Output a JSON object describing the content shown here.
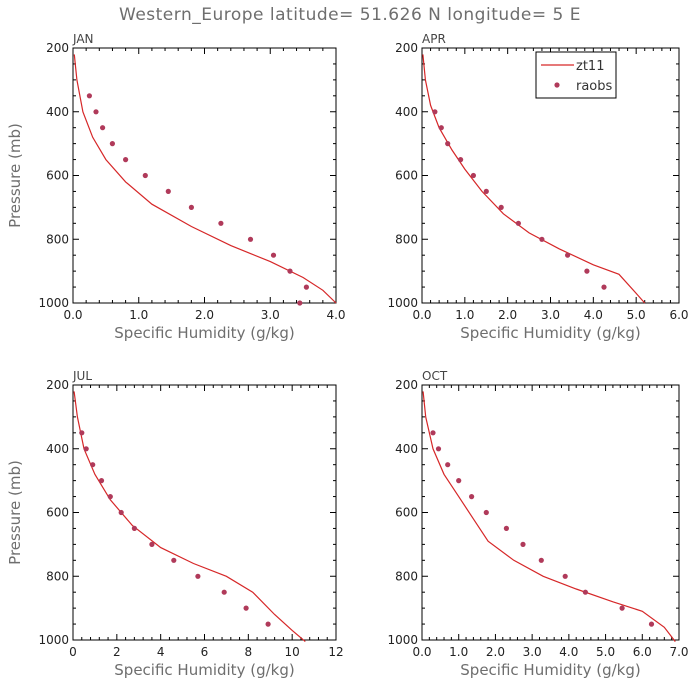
{
  "title": "Western_Europe  latitude= 51.626 N longitude= 5 E",
  "chart_data": [
    {
      "type": "line",
      "panel": "JAN",
      "xlabel": "Specific Humidity (g/kg)",
      "ylabel": "Pressure (mb)",
      "xlim": [
        0,
        4.0
      ],
      "ylim": [
        200,
        1000
      ],
      "xticks": [
        0,
        1,
        2,
        3,
        4
      ],
      "xtick_labels": [
        "0.0",
        "1.0",
        "2.0",
        "3.0",
        "4.0"
      ],
      "yticks": [
        200,
        400,
        600,
        800,
        1000
      ],
      "ytick_labels": [
        "200",
        "400",
        "600",
        "800",
        "1000"
      ],
      "series": [
        {
          "name": "zt11",
          "type": "line",
          "color": "#d62728",
          "x": [
            0.02,
            0.06,
            0.15,
            0.3,
            0.5,
            0.8,
            1.2,
            1.8,
            2.4,
            3.0,
            3.5,
            3.8,
            4.0
          ],
          "y": [
            220,
            300,
            400,
            480,
            550,
            620,
            690,
            760,
            820,
            870,
            920,
            960,
            1000
          ]
        },
        {
          "name": "raobs",
          "type": "scatter",
          "color": "#b03a5a",
          "x": [
            0.25,
            0.35,
            0.45,
            0.6,
            0.8,
            1.1,
            1.45,
            1.8,
            2.25,
            2.7,
            3.05,
            3.3,
            3.55,
            3.45
          ],
          "y": [
            350,
            400,
            450,
            500,
            550,
            600,
            650,
            700,
            750,
            800,
            850,
            900,
            950,
            1000
          ]
        }
      ]
    },
    {
      "type": "line",
      "panel": "APR",
      "xlabel": "Specific Humidity (g/kg)",
      "ylabel": "",
      "xlim": [
        0,
        6.0
      ],
      "ylim": [
        200,
        1000
      ],
      "xticks": [
        0,
        1,
        2,
        3,
        4,
        5,
        6
      ],
      "xtick_labels": [
        "0.0",
        "1.0",
        "2.0",
        "3.0",
        "4.0",
        "5.0",
        "6.0"
      ],
      "yticks": [
        200,
        400,
        600,
        800,
        1000
      ],
      "ytick_labels": [
        "200",
        "400",
        "600",
        "800",
        "1000"
      ],
      "legend": {
        "position": "top-right",
        "entries": [
          "zt11",
          "raobs"
        ]
      },
      "series": [
        {
          "name": "zt11",
          "type": "line",
          "color": "#d62728",
          "x": [
            0.02,
            0.08,
            0.2,
            0.4,
            0.7,
            1.0,
            1.4,
            1.9,
            2.5,
            3.2,
            4.0,
            4.6,
            5.0,
            5.2
          ],
          "y": [
            220,
            300,
            380,
            450,
            520,
            580,
            650,
            720,
            780,
            830,
            880,
            910,
            970,
            1000
          ]
        },
        {
          "name": "raobs",
          "type": "scatter",
          "color": "#b03a5a",
          "x": [
            0.3,
            0.45,
            0.6,
            0.9,
            1.2,
            1.5,
            1.85,
            2.25,
            2.8,
            3.4,
            3.85,
            4.25
          ],
          "y": [
            400,
            450,
            500,
            550,
            600,
            650,
            700,
            750,
            800,
            850,
            900,
            950
          ]
        }
      ]
    },
    {
      "type": "line",
      "panel": "JUL",
      "xlabel": "Specific Humidity (g/kg)",
      "ylabel": "Pressure (mb)",
      "xlim": [
        0,
        12
      ],
      "ylim": [
        200,
        1000
      ],
      "xticks": [
        0,
        2,
        4,
        6,
        8,
        10,
        12
      ],
      "xtick_labels": [
        "0",
        "2",
        "4",
        "6",
        "8",
        "10",
        "12"
      ],
      "yticks": [
        200,
        400,
        600,
        800,
        1000
      ],
      "ytick_labels": [
        "200",
        "400",
        "600",
        "800",
        "1000"
      ],
      "series": [
        {
          "name": "zt11",
          "type": "line",
          "color": "#d62728",
          "x": [
            0.05,
            0.2,
            0.5,
            1.0,
            1.7,
            2.7,
            4.0,
            5.5,
            7.0,
            8.2,
            9.2,
            10.0,
            10.6
          ],
          "y": [
            220,
            300,
            400,
            480,
            560,
            640,
            710,
            760,
            800,
            850,
            920,
            970,
            1005
          ]
        },
        {
          "name": "raobs",
          "type": "scatter",
          "color": "#b03a5a",
          "x": [
            0.4,
            0.6,
            0.9,
            1.3,
            1.7,
            2.2,
            2.8,
            3.6,
            4.6,
            5.7,
            6.9,
            7.9,
            8.9
          ],
          "y": [
            350,
            400,
            450,
            500,
            550,
            600,
            650,
            700,
            750,
            800,
            850,
            900,
            950
          ]
        }
      ]
    },
    {
      "type": "line",
      "panel": "OCT",
      "xlabel": "Specific Humidity (g/kg)",
      "ylabel": "",
      "xlim": [
        0,
        7.0
      ],
      "ylim": [
        200,
        1000
      ],
      "xticks": [
        0,
        1,
        2,
        3,
        4,
        5,
        6,
        7
      ],
      "xtick_labels": [
        "0.0",
        "1.0",
        "2.0",
        "3.0",
        "4.0",
        "5.0",
        "6.0",
        "7.0"
      ],
      "yticks": [
        200,
        400,
        600,
        800,
        1000
      ],
      "ytick_labels": [
        "200",
        "400",
        "600",
        "800",
        "1000"
      ],
      "series": [
        {
          "name": "zt11",
          "type": "line",
          "color": "#d62728",
          "x": [
            0.03,
            0.1,
            0.3,
            0.6,
            1.0,
            1.4,
            1.8,
            2.5,
            3.3,
            4.2,
            5.2,
            6.0,
            6.6,
            6.9
          ],
          "y": [
            220,
            300,
            400,
            480,
            550,
            620,
            690,
            750,
            800,
            840,
            880,
            910,
            960,
            1005
          ]
        },
        {
          "name": "raobs",
          "type": "scatter",
          "color": "#b03a5a",
          "x": [
            0.3,
            0.45,
            0.7,
            1.0,
            1.35,
            1.75,
            2.3,
            2.75,
            3.25,
            3.9,
            4.45,
            5.45,
            6.25
          ],
          "y": [
            350,
            400,
            450,
            500,
            550,
            600,
            650,
            700,
            750,
            800,
            850,
            900,
            950
          ]
        }
      ]
    }
  ]
}
